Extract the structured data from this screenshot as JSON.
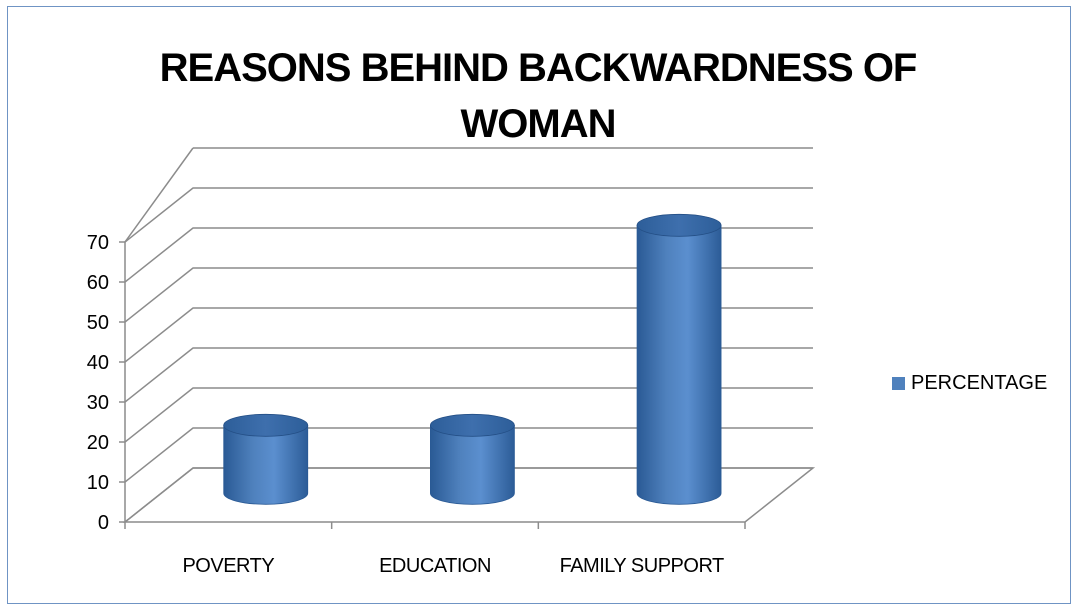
{
  "chart_data": {
    "type": "bar",
    "style": "3d-cylinder",
    "title": "REASONS BEHIND BACKWARDNESS OF WOMAN",
    "title_lines": [
      "REASONS BEHIND BACKWARDNESS OF",
      "WOMAN"
    ],
    "categories": [
      "POVERTY",
      "EDUCATION",
      "FAMILY SUPPORT"
    ],
    "series": [
      {
        "name": "PERCENTAGE",
        "values": [
          17,
          17,
          67
        ],
        "color": "#4f81bd"
      }
    ],
    "yticks": [
      0,
      10,
      20,
      30,
      40,
      50,
      60,
      70
    ],
    "ylim": [
      0,
      70
    ],
    "grid": true,
    "legend_position": "right",
    "frame_color": "#6f94c4"
  }
}
